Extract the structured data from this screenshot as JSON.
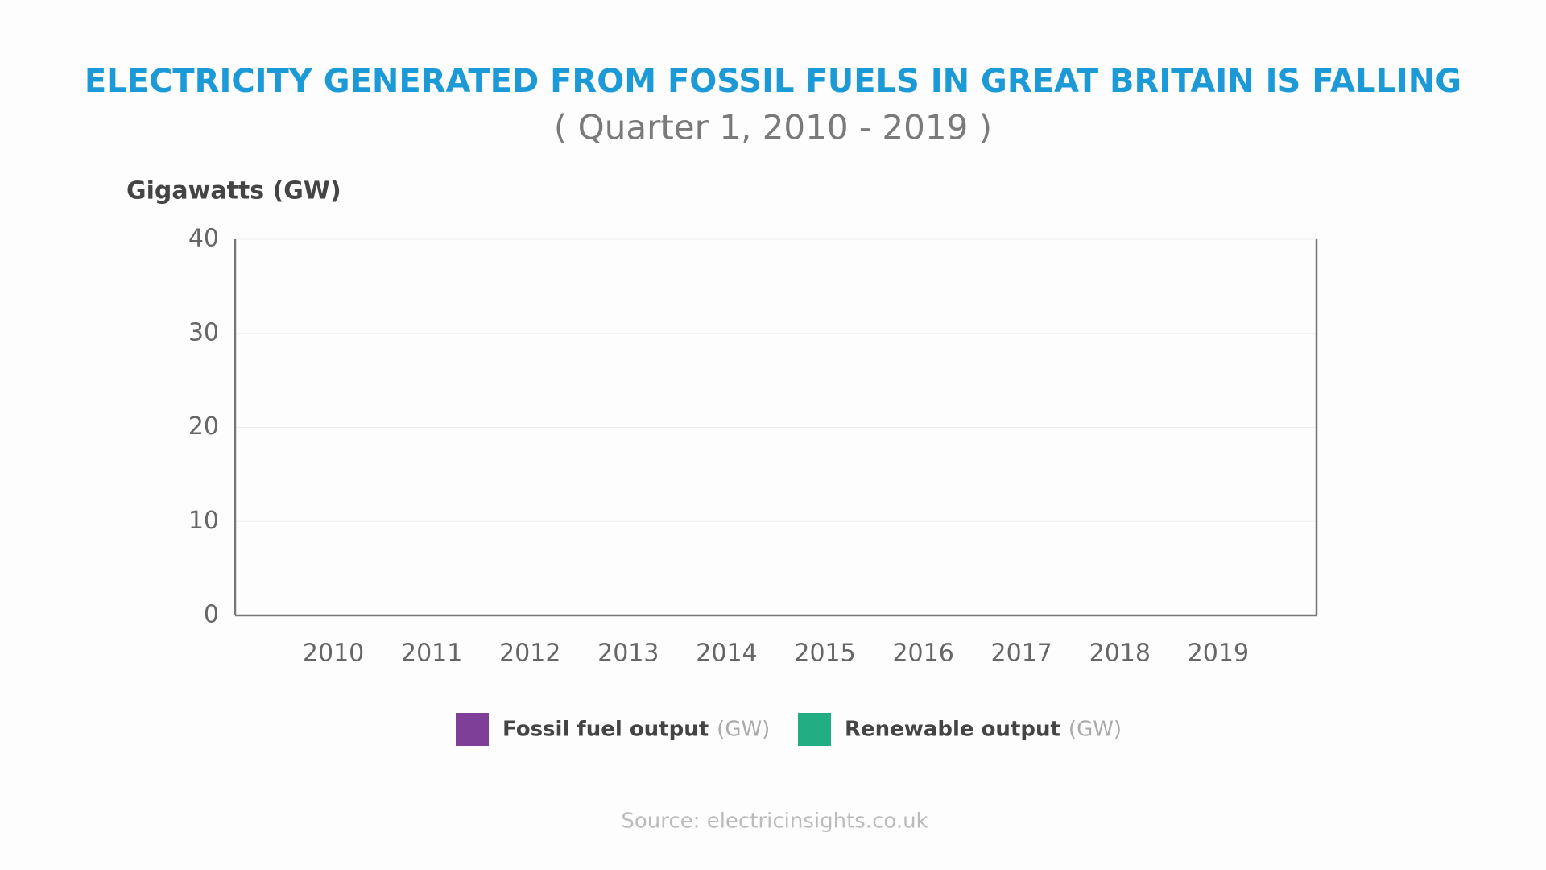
{
  "chart_data": {
    "type": "bar",
    "title": "ELECTRICITY GENERATED FROM FOSSIL FUELS IN GREAT BRITAIN IS FALLING",
    "subtitle": "( Quarter 1, 2010 - 2019 )",
    "y_label": "Gigawatts (GW)",
    "categories": [
      "2010",
      "2011",
      "2012",
      "2013",
      "2014",
      "2015",
      "2016",
      "2017",
      "2018",
      "2019"
    ],
    "series": [
      {
        "name": "Fossil fuel output",
        "unit": "(GW)",
        "color": "#7d3f98",
        "values": [
          null,
          null,
          null,
          null,
          null,
          null,
          null,
          null,
          null,
          null
        ]
      },
      {
        "name": "Renewable output",
        "unit": "(GW)",
        "color": "#22ad82",
        "values": [
          null,
          null,
          null,
          null,
          null,
          null,
          null,
          null,
          null,
          null
        ]
      }
    ],
    "ylim": [
      0,
      40
    ],
    "yticks": [
      0,
      10,
      20,
      30,
      40
    ],
    "grid": true,
    "source": "Source: electricinsights.co.uk"
  }
}
